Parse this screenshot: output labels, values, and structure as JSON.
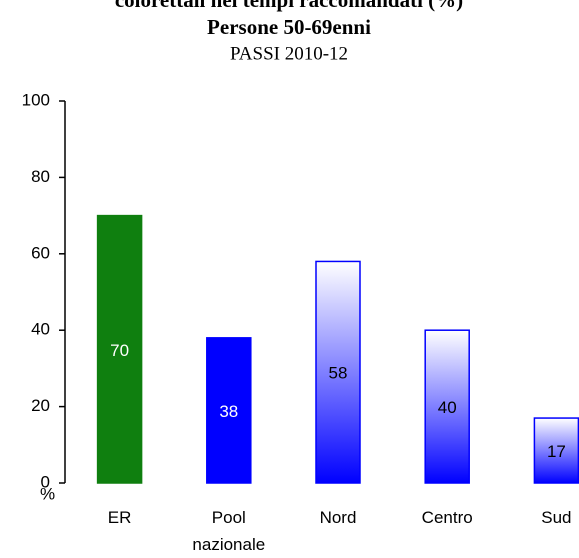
{
  "chart_data": {
    "type": "bar",
    "title": "colorettali nei tempi raccomandati (%)",
    "subtitle_bold": "Persone 50-69enni",
    "subtitle": "PASSI 2010-12",
    "y_label": "%",
    "categories": [
      "ER",
      "Pool nazionale",
      "Nord",
      "Centro",
      "Sud"
    ],
    "values": [
      70,
      38,
      58,
      40,
      17
    ],
    "colors": [
      "#0f7f0f",
      "#0000ff",
      "#0000ff",
      "#0000ff",
      "#0000ff"
    ],
    "gradient": [
      false,
      false,
      true,
      true,
      true
    ],
    "ylim": [
      0,
      100
    ],
    "yticks": [
      0,
      20,
      40,
      60,
      80,
      100
    ]
  }
}
